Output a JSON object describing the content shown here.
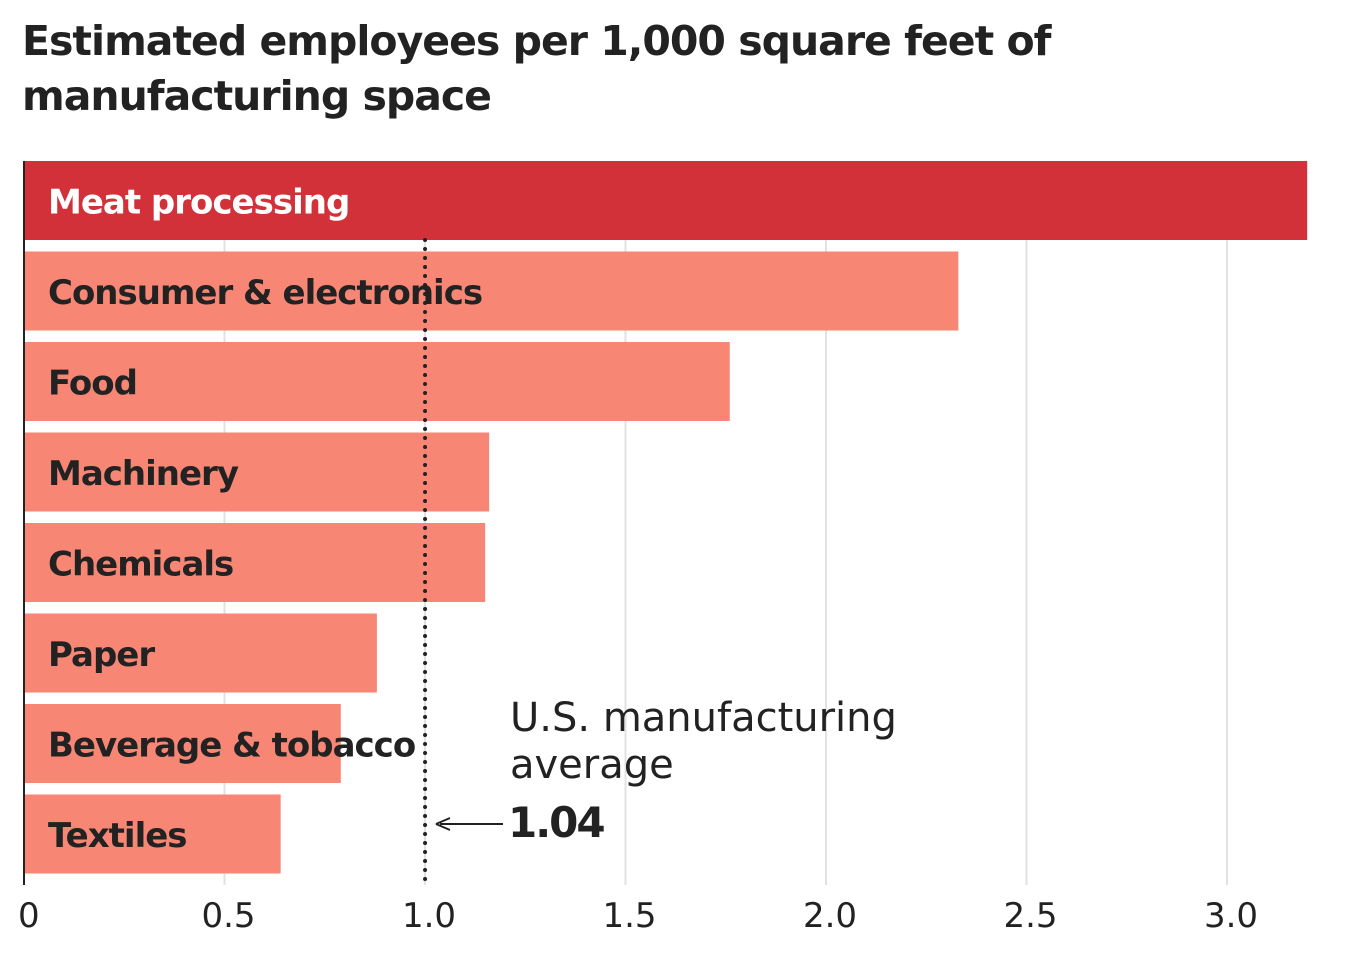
{
  "chart_data": {
    "type": "bar",
    "orientation": "horizontal",
    "title": "Estimated employees per 1,000 square feet of manufacturing space",
    "xlabel": "",
    "ylabel": "",
    "xlim": [
      0,
      3.2
    ],
    "x_ticks": [
      "0",
      "0.5",
      "1.0",
      "1.5",
      "2.0",
      "2.5",
      "3.0"
    ],
    "x_tick_values": [
      0,
      0.5,
      1.0,
      1.5,
      2.0,
      2.5,
      3.0
    ],
    "grid": true,
    "categories": [
      "Meat processing",
      "Consumer & electronics",
      "Food",
      "Machinery",
      "Chemicals",
      "Paper",
      "Beverage & tobacco",
      "Textiles"
    ],
    "values": [
      3.2,
      2.33,
      1.76,
      1.16,
      1.15,
      0.88,
      0.79,
      0.64
    ],
    "highlight": "Meat processing",
    "colors": {
      "highlight": "#d33139",
      "default": "#f78675",
      "highlight_text": "#ffffff",
      "default_text": "#222222",
      "grid": "#e2e2e2",
      "axis": "#222222"
    },
    "reference_line": {
      "value": 1.04,
      "style": "dotted",
      "annotation_lines": [
        "U.S. manufacturing",
        "average"
      ],
      "annotation_value": "1.04"
    }
  }
}
